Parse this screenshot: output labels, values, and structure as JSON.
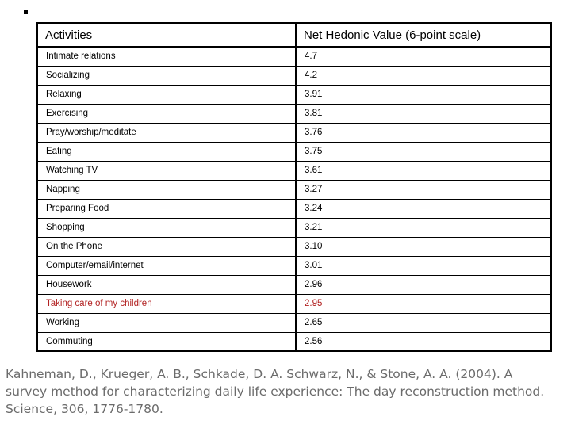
{
  "decor": {
    "stray_mark": "small-black-square"
  },
  "table": {
    "headers": [
      "Activities",
      "Net Hedonic Value (6-point scale)"
    ],
    "highlight_color": "#b22222",
    "rows": [
      {
        "activity": "Intimate relations",
        "value": "4.7",
        "highlight": false
      },
      {
        "activity": "Socializing",
        "value": "4.2",
        "highlight": false
      },
      {
        "activity": "Relaxing",
        "value": "3.91",
        "highlight": false
      },
      {
        "activity": "Exercising",
        "value": "3.81",
        "highlight": false
      },
      {
        "activity": "Pray/worship/meditate",
        "value": "3.76",
        "highlight": false
      },
      {
        "activity": "Eating",
        "value": "3.75",
        "highlight": false
      },
      {
        "activity": "Watching TV",
        "value": "3.61",
        "highlight": false
      },
      {
        "activity": "Napping",
        "value": "3.27",
        "highlight": false
      },
      {
        "activity": "Preparing Food",
        "value": "3.24",
        "highlight": false
      },
      {
        "activity": "Shopping",
        "value": "3.21",
        "highlight": false
      },
      {
        "activity": "On the Phone",
        "value": "3.10",
        "highlight": false
      },
      {
        "activity": "Computer/email/internet",
        "value": "3.01",
        "highlight": false
      },
      {
        "activity": "Housework",
        "value": "2.96",
        "highlight": false
      },
      {
        "activity": "Taking care of my children",
        "value": "2.95",
        "highlight": true
      },
      {
        "activity": "Working",
        "value": "2.65",
        "highlight": false
      },
      {
        "activity": "Commuting",
        "value": "2.56",
        "highlight": false
      }
    ]
  },
  "citation": {
    "text": "Kahneman, D., Krueger, A. B., Schkade, D. A. Schwarz, N., & Stone, A. A. (2004). A survey method for characterizing daily life experience: The day reconstruction method. Science, 306, 1776-1780.",
    "color": "#6b6b6b"
  },
  "chart_data": {
    "type": "table",
    "title": "Net Hedonic Value (6-point scale)",
    "categories": [
      "Intimate relations",
      "Socializing",
      "Relaxing",
      "Exercising",
      "Pray/worship/meditate",
      "Eating",
      "Watching TV",
      "Napping",
      "Preparing Food",
      "Shopping",
      "On the Phone",
      "Computer/email/internet",
      "Housework",
      "Taking care of my children",
      "Working",
      "Commuting"
    ],
    "values": [
      4.7,
      4.2,
      3.91,
      3.81,
      3.76,
      3.75,
      3.61,
      3.27,
      3.24,
      3.21,
      3.1,
      3.01,
      2.96,
      2.95,
      2.65,
      2.56
    ]
  }
}
